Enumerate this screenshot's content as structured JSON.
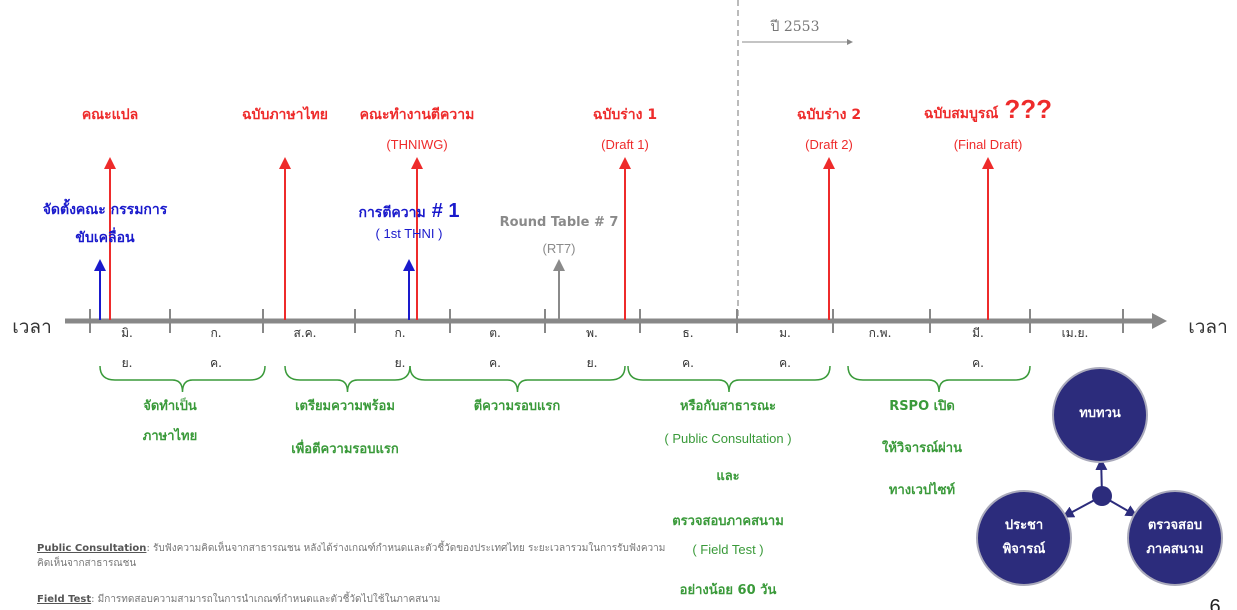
{
  "year_marker": "ปี 2553",
  "axis": {
    "left_label": "เวลา",
    "right_label": "เวลา"
  },
  "months": [
    [
      "มิ.",
      "ย."
    ],
    [
      "ก.",
      "ค."
    ],
    [
      "ส.ค."
    ],
    [
      "ก.",
      "ย."
    ],
    [
      "ต.",
      "ค."
    ],
    [
      "พ.",
      "ย."
    ],
    [
      "ธ.",
      "ค."
    ],
    [
      "ม.",
      "ค."
    ],
    [
      "ก.พ."
    ],
    [
      "มี.",
      "ค."
    ],
    [
      "เม.ย."
    ]
  ],
  "events": [
    {
      "title": "คณะแปล",
      "color": "#ee2b2b"
    },
    {
      "title": "ฉบับภาษาไทย",
      "color": "#ee2b2b"
    },
    {
      "title": "คณะทำงานตีความ",
      "subtitle": "(THNIWG)",
      "color": "#ee2b2b"
    },
    {
      "title": "ฉบับร่าง 1",
      "subtitle": "(Draft 1)",
      "color": "#ee2b2b"
    },
    {
      "title": "ฉบับร่าง 2",
      "subtitle": "(Draft 2)",
      "color": "#ee2b2b"
    },
    {
      "title": "ฉบับสมบูรณ์",
      "emphasis": "???",
      "subtitle": "(Final Draft)",
      "color": "#ee2b2b"
    },
    {
      "lines": [
        "จัดตั้งคณะ กรรมการ",
        "ขับเคลื่อน"
      ],
      "color": "#1a1acc"
    },
    {
      "title": "การตีความ",
      "emphasis": "# 1",
      "subtitle": "( 1st THNI )",
      "color": "#1a1acc"
    },
    {
      "title": "Round Table # 7",
      "subtitle": "(RT7)",
      "color": "#8a8a8a"
    }
  ],
  "phases": [
    {
      "lines": [
        "จัดทำเป็น",
        "ภาษาไทย"
      ]
    },
    {
      "lines": [
        "เตรียมความพร้อม",
        "เพื่อตีความรอบแรก"
      ]
    },
    {
      "lines": [
        "ตีความรอบแรก"
      ]
    },
    {
      "lines": [
        "หรือกับสาธารณะ",
        "( Public Consultation )",
        "และ",
        "ตรวจสอบภาคสนาม",
        "( Field Test )",
        "อย่างน้อย 60  วัน"
      ]
    },
    {
      "lines": [
        "RSPO เปิด",
        "ให้วิจารณ์ผ่าน",
        "ทางเวปไซท์"
      ]
    }
  ],
  "notes": [
    {
      "term": "Public Consultation",
      "text": ": รับฟังความคิดเห็นจากสาธารณชน หลังได้ร่างเกณฑ์กำหนดและตัวชี้วัดของประเทศไทย ระยะเวลารวมในการรับฟังความคิดเห็นจากสาธารณชน"
    },
    {
      "term": "Field Test",
      "text": ":  มีการทดสอบความสามารถในการนำเกณฑ์กำหนดและตัวชี้วัดไปใช้ในภาคสนาม"
    }
  ],
  "cycle": [
    {
      "lines": [
        "ทบทวน"
      ]
    },
    {
      "lines": [
        "ประชา",
        "พิจารณ์"
      ]
    },
    {
      "lines": [
        "ตรวจสอบ",
        "ภาคสนาม"
      ]
    }
  ],
  "page_number": "6"
}
